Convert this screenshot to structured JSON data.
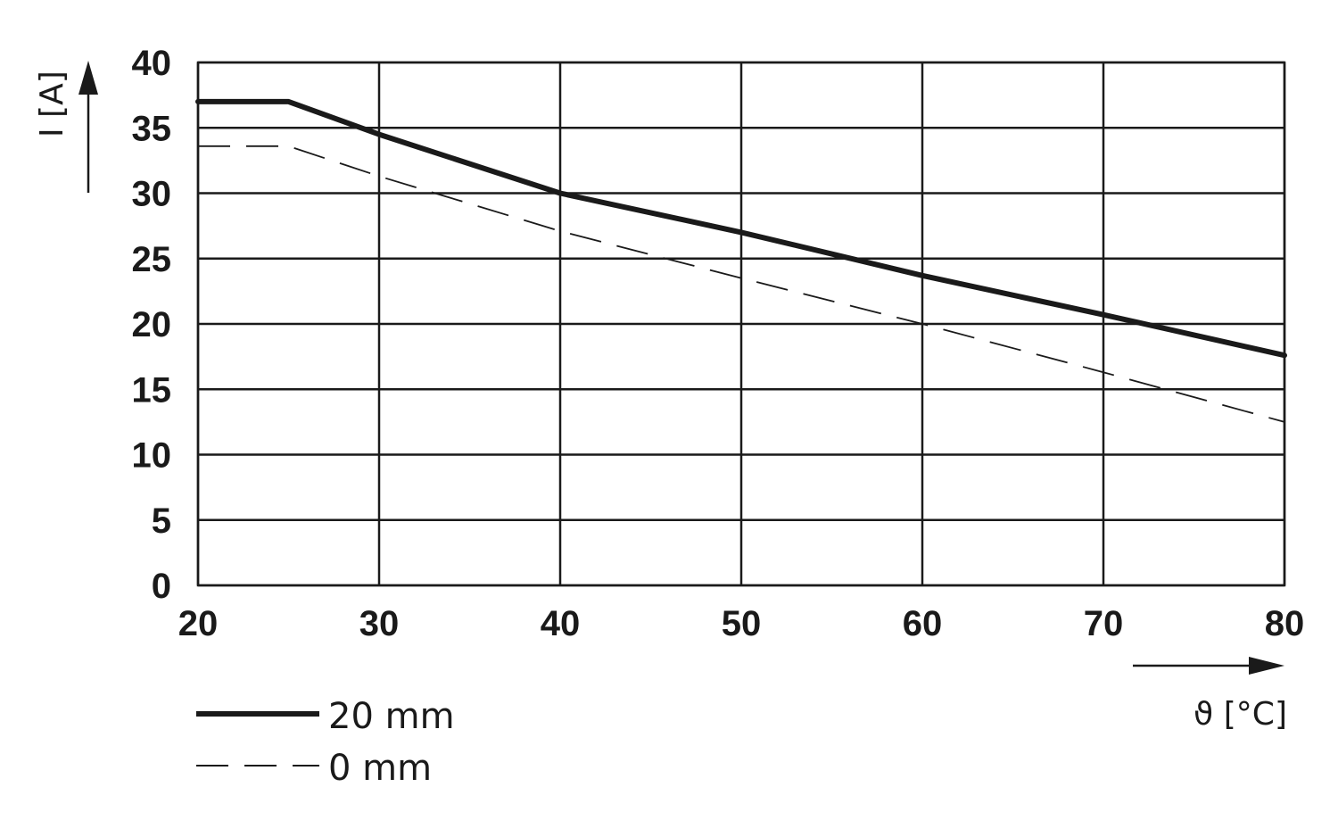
{
  "chart_data": {
    "type": "line",
    "title": "",
    "xlabel": "ϑ [°C]",
    "ylabel": "I [A]",
    "xlim": [
      20,
      80
    ],
    "ylim": [
      0,
      40
    ],
    "x_ticks": [
      "20",
      "30",
      "40",
      "50",
      "60",
      "70",
      "80"
    ],
    "y_ticks": [
      "0",
      "5",
      "10",
      "15",
      "20",
      "25",
      "30",
      "35",
      "40"
    ],
    "grid": true,
    "legend_position": "bottom-left",
    "series": [
      {
        "name": "20 mm",
        "style": "solid",
        "color": "#1a1a1a",
        "points": [
          [
            20,
            37
          ],
          [
            25,
            37
          ],
          [
            30,
            34.5
          ],
          [
            40,
            30
          ],
          [
            50,
            27
          ],
          [
            60,
            23.7
          ],
          [
            70,
            20.7
          ],
          [
            80,
            17.6
          ]
        ]
      },
      {
        "name": "0 mm",
        "style": "dashed",
        "color": "#1a1a1a",
        "points": [
          [
            20,
            33.6
          ],
          [
            25,
            33.6
          ],
          [
            30,
            31.3
          ],
          [
            40,
            27.1
          ],
          [
            50,
            23.5
          ],
          [
            60,
            20
          ],
          [
            70,
            16.3
          ],
          [
            80,
            12.5
          ]
        ]
      }
    ]
  }
}
